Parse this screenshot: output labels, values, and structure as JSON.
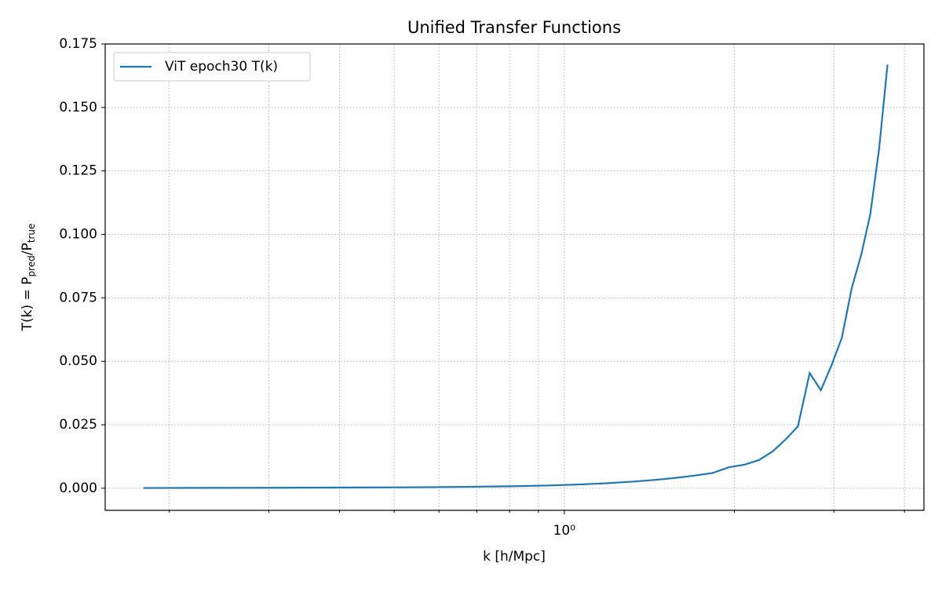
{
  "chart_data": {
    "type": "line",
    "title": "Unified Transfer Functions",
    "xlabel": "k [h/Mpc]",
    "ylabel": [
      "T(k) = P",
      "pred",
      "/P",
      "true"
    ],
    "x": [
      0.18,
      0.307,
      0.434,
      0.561,
      0.688,
      0.815,
      0.941,
      1.068,
      1.195,
      1.322,
      1.449,
      1.576,
      1.703,
      1.83,
      1.957,
      2.084,
      2.21,
      2.337,
      2.464,
      2.591,
      2.718,
      2.845,
      2.972,
      3.099,
      3.226,
      3.352,
      3.479,
      3.606,
      3.733
    ],
    "series": [
      {
        "name": "ViT epoch30 T(k)",
        "color": "#1f77b4",
        "values": [
          0.0001,
          0.0002,
          0.0003,
          0.0004,
          0.0006,
          0.0008,
          0.0011,
          0.0015,
          0.002,
          0.0026,
          0.0033,
          0.0041,
          0.005,
          0.006,
          0.0083,
          0.0093,
          0.0111,
          0.0145,
          0.0192,
          0.0244,
          0.0454,
          0.0386,
          0.0485,
          0.0593,
          0.0788,
          0.0918,
          0.1078,
          0.1335,
          0.1669
        ]
      }
    ],
    "xscale": "log",
    "xlim": [
      0.154,
      4.33
    ],
    "xticks": [
      {
        "value": 1,
        "label": "10⁰"
      }
    ],
    "x_minor_ticks": [
      0.2,
      0.3,
      0.4,
      0.5,
      0.6,
      0.7,
      0.8,
      0.9,
      2,
      3,
      4
    ],
    "ylim": [
      -0.0087,
      0.175
    ],
    "yticks": [
      {
        "value": 0,
        "label": "0.000"
      },
      {
        "value": 0.025,
        "label": "0.025"
      },
      {
        "value": 0.05,
        "label": "0.050"
      },
      {
        "value": 0.075,
        "label": "0.075"
      },
      {
        "value": 0.1,
        "label": "0.100"
      },
      {
        "value": 0.125,
        "label": "0.125"
      },
      {
        "value": 0.15,
        "label": "0.150"
      },
      {
        "value": 0.175,
        "label": "0.175"
      }
    ],
    "grid": true,
    "legend": "upper left"
  }
}
